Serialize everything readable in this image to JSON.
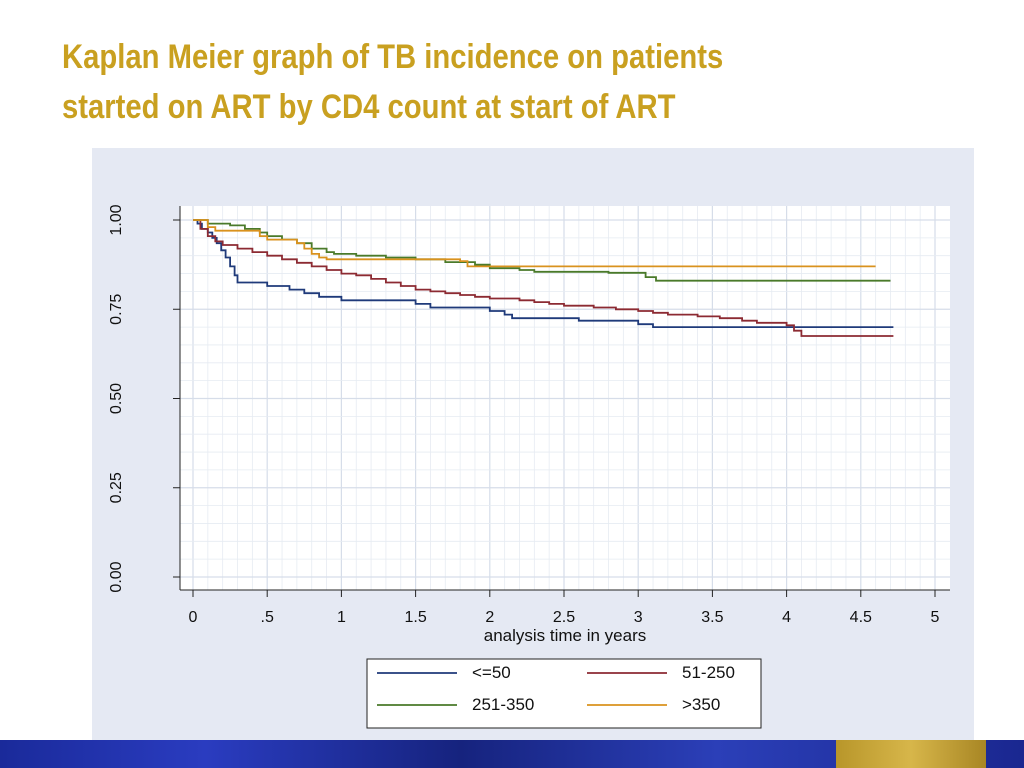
{
  "slide": {
    "title_line1": "Kaplan Meier graph of TB incidence on patients",
    "title_line2": "started on ART by CD4 count at start of ART"
  },
  "chart_data": {
    "type": "line",
    "title": "",
    "xlabel": "analysis time in years",
    "ylabel": "",
    "xlim": [
      0,
      5
    ],
    "ylim": [
      0,
      1
    ],
    "x_ticks": [
      "0",
      ".5",
      "1",
      "1.5",
      "2",
      "2.5",
      "3",
      "3.5",
      "4",
      "4.5",
      "5"
    ],
    "y_ticks": [
      "0.00",
      "0.25",
      "0.50",
      "0.75",
      "1.00"
    ],
    "grid": true,
    "legend_position": "bottom",
    "series": [
      {
        "name": "<=50",
        "color": "#1f3a7a",
        "points": [
          [
            0,
            1.0
          ],
          [
            0.03,
            0.99
          ],
          [
            0.06,
            0.975
          ],
          [
            0.1,
            0.965
          ],
          [
            0.13,
            0.95
          ],
          [
            0.16,
            0.935
          ],
          [
            0.19,
            0.915
          ],
          [
            0.22,
            0.895
          ],
          [
            0.25,
            0.87
          ],
          [
            0.28,
            0.845
          ],
          [
            0.3,
            0.825
          ],
          [
            0.5,
            0.815
          ],
          [
            0.65,
            0.805
          ],
          [
            0.75,
            0.795
          ],
          [
            0.85,
            0.785
          ],
          [
            1.0,
            0.775
          ],
          [
            1.5,
            0.765
          ],
          [
            1.6,
            0.755
          ],
          [
            2.0,
            0.745
          ],
          [
            2.1,
            0.735
          ],
          [
            2.15,
            0.725
          ],
          [
            2.6,
            0.718
          ],
          [
            3.0,
            0.708
          ],
          [
            3.1,
            0.7
          ],
          [
            4.72,
            0.7
          ]
        ]
      },
      {
        "name": "51-250",
        "color": "#8c2a32",
        "points": [
          [
            0,
            1.0
          ],
          [
            0.05,
            0.975
          ],
          [
            0.1,
            0.955
          ],
          [
            0.15,
            0.94
          ],
          [
            0.2,
            0.93
          ],
          [
            0.3,
            0.92
          ],
          [
            0.4,
            0.91
          ],
          [
            0.5,
            0.9
          ],
          [
            0.6,
            0.89
          ],
          [
            0.7,
            0.88
          ],
          [
            0.8,
            0.87
          ],
          [
            0.9,
            0.86
          ],
          [
            1.0,
            0.85
          ],
          [
            1.1,
            0.845
          ],
          [
            1.2,
            0.835
          ],
          [
            1.3,
            0.825
          ],
          [
            1.4,
            0.815
          ],
          [
            1.5,
            0.805
          ],
          [
            1.6,
            0.8
          ],
          [
            1.7,
            0.795
          ],
          [
            1.8,
            0.79
          ],
          [
            1.9,
            0.785
          ],
          [
            2.0,
            0.78
          ],
          [
            2.2,
            0.775
          ],
          [
            2.3,
            0.77
          ],
          [
            2.4,
            0.765
          ],
          [
            2.5,
            0.76
          ],
          [
            2.7,
            0.755
          ],
          [
            2.85,
            0.75
          ],
          [
            3.0,
            0.745
          ],
          [
            3.1,
            0.74
          ],
          [
            3.2,
            0.735
          ],
          [
            3.4,
            0.73
          ],
          [
            3.55,
            0.725
          ],
          [
            3.7,
            0.718
          ],
          [
            3.8,
            0.712
          ],
          [
            4.0,
            0.705
          ],
          [
            4.05,
            0.69
          ],
          [
            4.1,
            0.675
          ],
          [
            4.72,
            0.675
          ]
        ]
      },
      {
        "name": "251-350",
        "color": "#4a7a2a",
        "points": [
          [
            0,
            1.0
          ],
          [
            0.1,
            0.99
          ],
          [
            0.25,
            0.985
          ],
          [
            0.35,
            0.975
          ],
          [
            0.45,
            0.965
          ],
          [
            0.5,
            0.955
          ],
          [
            0.6,
            0.945
          ],
          [
            0.7,
            0.935
          ],
          [
            0.8,
            0.92
          ],
          [
            0.9,
            0.91
          ],
          [
            0.95,
            0.905
          ],
          [
            1.1,
            0.9
          ],
          [
            1.3,
            0.895
          ],
          [
            1.5,
            0.89
          ],
          [
            1.7,
            0.882
          ],
          [
            1.9,
            0.875
          ],
          [
            2.0,
            0.865
          ],
          [
            2.2,
            0.86
          ],
          [
            2.3,
            0.855
          ],
          [
            2.8,
            0.852
          ],
          [
            3.05,
            0.84
          ],
          [
            3.12,
            0.83
          ],
          [
            4.7,
            0.83
          ]
        ]
      },
      {
        "name": ">350",
        "color": "#d9921e",
        "points": [
          [
            0,
            1.0
          ],
          [
            0.1,
            0.98
          ],
          [
            0.15,
            0.97
          ],
          [
            0.45,
            0.955
          ],
          [
            0.5,
            0.945
          ],
          [
            0.7,
            0.935
          ],
          [
            0.75,
            0.92
          ],
          [
            0.8,
            0.905
          ],
          [
            0.85,
            0.895
          ],
          [
            0.9,
            0.89
          ],
          [
            1.8,
            0.885
          ],
          [
            1.85,
            0.87
          ],
          [
            4.6,
            0.87
          ]
        ]
      }
    ]
  }
}
